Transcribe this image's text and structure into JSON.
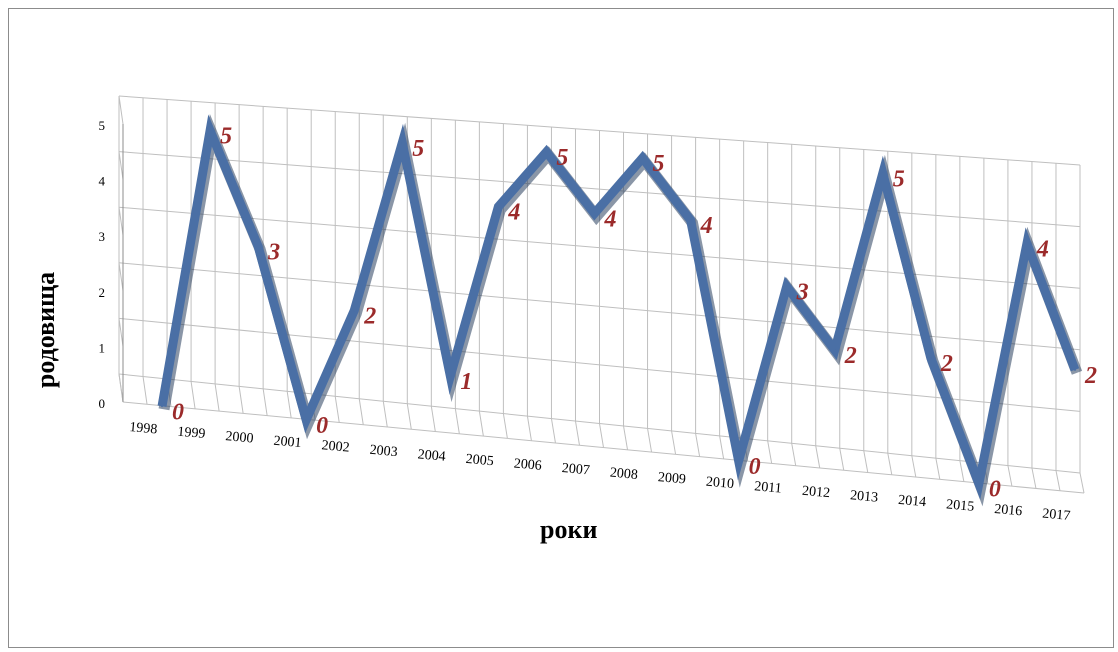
{
  "chart_data": {
    "type": "line",
    "title": "",
    "xlabel": "роки",
    "ylabel": "родовища",
    "categories": [
      "1998",
      "1999",
      "2000",
      "2001",
      "2002",
      "2003",
      "2004",
      "2005",
      "2006",
      "2007",
      "2008",
      "2009",
      "2010",
      "2011",
      "2012",
      "2013",
      "2014",
      "2015",
      "2016",
      "2017"
    ],
    "values": [
      0,
      5,
      3,
      0,
      2,
      5,
      1,
      4,
      5,
      4,
      5,
      4,
      0,
      3,
      2,
      5,
      2,
      0,
      4,
      2
    ],
    "y_ticks": [
      "0",
      "1",
      "2",
      "3",
      "4",
      "5"
    ],
    "ylim": [
      0,
      5
    ],
    "grid": true,
    "legend": "none",
    "perspective": "3d",
    "colors": {
      "line": "#4a6fa5",
      "labels": "#9b2a2a",
      "grid": "#bfbfbf"
    }
  }
}
